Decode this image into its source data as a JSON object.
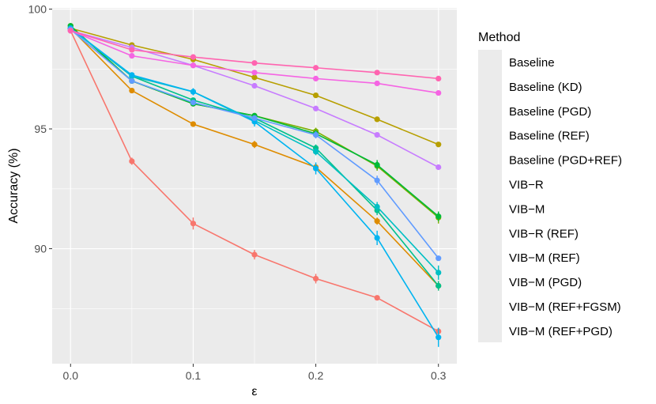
{
  "chart_data": {
    "type": "line",
    "title": "",
    "xlabel": "ε",
    "ylabel": "Accuracy (%)",
    "x": [
      0.0,
      0.05,
      0.1,
      0.15,
      0.2,
      0.25,
      0.3
    ],
    "x_ticks": [
      0.0,
      0.1,
      0.2,
      0.3
    ],
    "x_tick_labels": [
      "0.0",
      "0.1",
      "0.2",
      "0.3"
    ],
    "y_ticks": [
      90,
      95,
      100
    ],
    "y_tick_labels": [
      "90",
      "95",
      "100"
    ],
    "xlim": [
      -0.015,
      0.315
    ],
    "ylim": [
      85.2,
      100.05
    ],
    "grid": true,
    "legend": {
      "title": "Method",
      "position": "right"
    },
    "series": [
      {
        "name": "Baseline",
        "color": "#F8766D",
        "values": [
          99.1,
          93.65,
          91.05,
          89.75,
          88.75,
          87.95,
          86.55
        ],
        "errors": [
          0.1,
          0.15,
          0.25,
          0.2,
          0.2,
          0.1,
          0.1
        ]
      },
      {
        "name": "Baseline (KD)",
        "color": "#DE8C00",
        "values": [
          99.2,
          96.6,
          95.2,
          94.35,
          93.4,
          91.15,
          88.45
        ],
        "errors": [
          0.05,
          0.1,
          0.1,
          0.15,
          0.15,
          0.15,
          0.2
        ]
      },
      {
        "name": "Baseline (PGD)",
        "color": "#B79F00",
        "values": [
          99.2,
          98.5,
          97.9,
          97.15,
          96.4,
          95.4,
          94.35
        ],
        "errors": [
          0.05,
          0.05,
          0.05,
          0.05,
          0.05,
          0.05,
          0.05
        ]
      },
      {
        "name": "Baseline (REF)",
        "color": "#7CAE00",
        "values": [
          99.3,
          97.0,
          96.05,
          95.55,
          94.9,
          93.45,
          91.3
        ],
        "errors": [
          0.05,
          0.1,
          0.1,
          0.1,
          0.15,
          0.2,
          0.25
        ]
      },
      {
        "name": "Baseline (PGD+REF)",
        "color": "#00BA38",
        "values": [
          99.3,
          97.0,
          96.05,
          95.55,
          94.8,
          93.5,
          91.35
        ],
        "errors": [
          0.05,
          0.1,
          0.1,
          0.1,
          0.15,
          0.2,
          0.2
        ]
      },
      {
        "name": "VIB−R",
        "color": "#00C08B",
        "values": [
          99.2,
          97.2,
          96.2,
          95.45,
          94.2,
          91.6,
          88.45
        ],
        "errors": [
          0.05,
          0.1,
          0.1,
          0.1,
          0.15,
          0.2,
          0.2
        ]
      },
      {
        "name": "VIB−M",
        "color": "#00BFC4",
        "values": [
          99.2,
          97.2,
          96.55,
          95.35,
          94.05,
          91.75,
          89.0
        ],
        "errors": [
          0.05,
          0.1,
          0.1,
          0.1,
          0.15,
          0.2,
          0.3
        ]
      },
      {
        "name": "VIB−R (REF)",
        "color": "#00B4F0",
        "values": [
          99.2,
          97.25,
          96.55,
          95.3,
          93.35,
          90.45,
          86.3
        ],
        "errors": [
          0.05,
          0.1,
          0.15,
          0.2,
          0.25,
          0.3,
          0.4
        ]
      },
      {
        "name": "VIB−M (REF)",
        "color": "#619CFF",
        "values": [
          99.15,
          97.0,
          96.1,
          95.45,
          94.75,
          92.85,
          89.6
        ],
        "errors": [
          0.05,
          0.1,
          0.1,
          0.1,
          0.15,
          0.2,
          0.1
        ]
      },
      {
        "name": "VIB−M (PGD)",
        "color": "#C77CFF",
        "values": [
          99.1,
          98.4,
          97.65,
          96.8,
          95.85,
          94.75,
          93.4
        ],
        "errors": [
          0.05,
          0.05,
          0.05,
          0.05,
          0.05,
          0.05,
          0.05
        ]
      },
      {
        "name": "VIB−M (REF+FGSM)",
        "color": "#F564E3",
        "values": [
          99.1,
          98.05,
          97.65,
          97.35,
          97.1,
          96.9,
          96.5
        ],
        "errors": [
          0.05,
          0.05,
          0.05,
          0.05,
          0.05,
          0.05,
          0.05
        ]
      },
      {
        "name": "VIB−M (REF+PGD)",
        "color": "#FF64B0",
        "values": [
          99.1,
          98.3,
          98.0,
          97.75,
          97.55,
          97.35,
          97.1
        ],
        "errors": [
          0.05,
          0.05,
          0.05,
          0.05,
          0.05,
          0.05,
          0.05
        ]
      }
    ]
  }
}
